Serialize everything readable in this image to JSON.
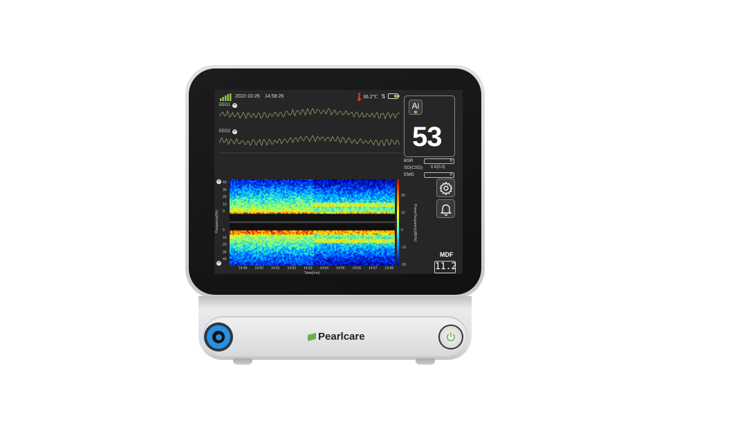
{
  "brand": {
    "name": "Pearlcare",
    "accent": "#6ab04c"
  },
  "status": {
    "date": "2022-10-26",
    "time": "14:58:26",
    "temperature": "36.2℃",
    "signal_icon": "signal-bars-icon",
    "battery_icon": "battery-icon"
  },
  "channels": [
    {
      "label": "EEG1"
    },
    {
      "label": "EEG2"
    }
  ],
  "index_panel": {
    "ai_label": "Ai",
    "value": "53"
  },
  "params": [
    {
      "label": "BSR",
      "value": "0"
    },
    {
      "label": "SD(CSD)",
      "value": "0.0(0.0)"
    },
    {
      "label": "EMG",
      "value": "0"
    }
  ],
  "buttons": {
    "settings_icon": "gear-icon",
    "alarm_icon": "bell-icon"
  },
  "mdf": {
    "label": "MDF",
    "value": "11.2"
  },
  "spectrogram": {
    "y_ticks_top": [
      "40",
      "30",
      "20",
      "10",
      "0"
    ],
    "y_ticks_bottom": [
      "0",
      "10",
      "20",
      "30",
      "40"
    ],
    "x_ticks": [
      "14:49",
      "14:50",
      "14:51",
      "14:52",
      "14:53",
      "14:54",
      "14:55",
      "14:56",
      "14:57",
      "14:58"
    ],
    "xlabel": "Time(h:m)",
    "ylabel": "Frequency(Hz)",
    "colorbar_ticks": [
      "20",
      "10",
      "0",
      "-10",
      "-20"
    ],
    "colorbar_label": "Power/frequency(dB/Hz)"
  }
}
